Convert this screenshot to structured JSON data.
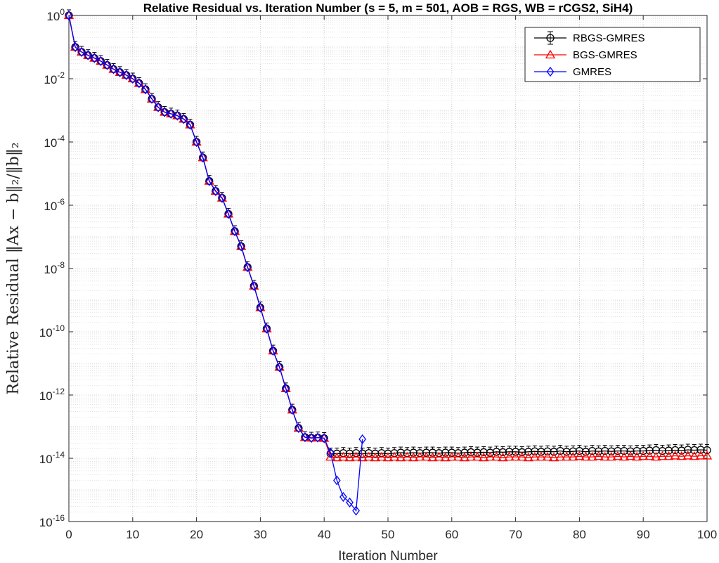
{
  "chart_data": {
    "type": "line",
    "title": "Relative Residual vs. Iteration Number (s = 5, m = 501, AOB = RGS, WB = rCGS2, SiH4)",
    "xlabel": "Iteration Number",
    "ylabel": "Relative Residual ‖Ax − b‖₂/‖b‖₂",
    "xlim": [
      0,
      100
    ],
    "ylim_exponent": [
      -16,
      0
    ],
    "yscale": "log",
    "grid": true,
    "minor_grid": true,
    "legend_position": "top-right",
    "x_ticks": [
      "0",
      "10",
      "20",
      "30",
      "40",
      "50",
      "60",
      "70",
      "80",
      "90",
      "100"
    ],
    "y_ticks": [
      {
        "base": "10",
        "exp": "0"
      },
      {
        "base": "10",
        "exp": "-2"
      },
      {
        "base": "10",
        "exp": "-4"
      },
      {
        "base": "10",
        "exp": "-6"
      },
      {
        "base": "10",
        "exp": "-8"
      },
      {
        "base": "10",
        "exp": "-10"
      },
      {
        "base": "10",
        "exp": "-12"
      },
      {
        "base": "10",
        "exp": "-14"
      },
      {
        "base": "10",
        "exp": "-16"
      }
    ],
    "series": [
      {
        "name": "RBGS-GMRES",
        "color": "#000000",
        "marker": "circle",
        "x": [
          0,
          1,
          2,
          3,
          4,
          5,
          6,
          7,
          8,
          9,
          10,
          11,
          12,
          13,
          14,
          15,
          16,
          17,
          18,
          19,
          20,
          21,
          22,
          23,
          24,
          25,
          26,
          27,
          28,
          29,
          30,
          31,
          32,
          33,
          34,
          35,
          36,
          37,
          38,
          39,
          40,
          41,
          42,
          43,
          44,
          45,
          46,
          47,
          48,
          49,
          50,
          51,
          52,
          53,
          54,
          55,
          56,
          57,
          58,
          59,
          60,
          61,
          62,
          63,
          64,
          65,
          66,
          67,
          68,
          69,
          70,
          71,
          72,
          73,
          74,
          75,
          76,
          77,
          78,
          79,
          80,
          81,
          82,
          83,
          84,
          85,
          86,
          87,
          88,
          89,
          90,
          91,
          92,
          93,
          94,
          95,
          96,
          97,
          98,
          99,
          100
        ],
        "y": [
          1,
          0.1,
          0.07,
          0.055,
          0.045,
          0.036,
          0.027,
          0.02,
          0.016,
          0.013,
          0.01,
          0.0072,
          0.0046,
          0.0023,
          0.00125,
          0.00088,
          0.00078,
          0.00068,
          0.00053,
          0.00035,
          0.0001,
          3.2e-05,
          5.8e-06,
          2.8e-06,
          1.7e-06,
          5.3e-07,
          1.5e-07,
          5e-08,
          1.1e-08,
          2.8e-09,
          5.8e-10,
          1.25e-10,
          2.5e-11,
          7.6e-12,
          1.6e-12,
          3.4e-13,
          9e-14,
          4.6e-14,
          4.4e-14,
          4.5e-14,
          4.3e-14,
          1.4e-14,
          1.4e-14,
          1.45e-14,
          1.4e-14,
          1.45e-14,
          1.4e-14,
          1.45e-14,
          1.4e-14,
          1.45e-14,
          1.4e-14,
          1.45e-14,
          1.5e-14,
          1.45e-14,
          1.5e-14,
          1.45e-14,
          1.5e-14,
          1.5e-14,
          1.45e-14,
          1.5e-14,
          1.5e-14,
          1.45e-14,
          1.5e-14,
          1.55e-14,
          1.5e-14,
          1.55e-14,
          1.5e-14,
          1.6e-14,
          1.55e-14,
          1.6e-14,
          1.6e-14,
          1.55e-14,
          1.6e-14,
          1.65e-14,
          1.6e-14,
          1.65e-14,
          1.6e-14,
          1.7e-14,
          1.6e-14,
          1.65e-14,
          1.7e-14,
          1.6e-14,
          1.7e-14,
          1.65e-14,
          1.7e-14,
          1.65e-14,
          1.7e-14,
          1.7e-14,
          1.65e-14,
          1.7e-14,
          1.7e-14,
          1.75e-14,
          1.8e-14,
          1.7e-14,
          1.75e-14,
          1.8e-14,
          1.75e-14,
          1.85e-14,
          1.8e-14,
          1.85e-14,
          1.8e-14
        ]
      },
      {
        "name": "BGS-GMRES",
        "color": "#ff0000",
        "marker": "triangle",
        "x": [
          0,
          1,
          2,
          3,
          4,
          5,
          6,
          7,
          8,
          9,
          10,
          11,
          12,
          13,
          14,
          15,
          16,
          17,
          18,
          19,
          20,
          21,
          22,
          23,
          24,
          25,
          26,
          27,
          28,
          29,
          30,
          31,
          32,
          33,
          34,
          35,
          36,
          37,
          38,
          39,
          40,
          41,
          42,
          43,
          44,
          45,
          46,
          47,
          48,
          49,
          50,
          51,
          52,
          53,
          54,
          55,
          56,
          57,
          58,
          59,
          60,
          61,
          62,
          63,
          64,
          65,
          66,
          67,
          68,
          69,
          70,
          71,
          72,
          73,
          74,
          75,
          76,
          77,
          78,
          79,
          80,
          81,
          82,
          83,
          84,
          85,
          86,
          87,
          88,
          89,
          90,
          91,
          92,
          93,
          94,
          95,
          96,
          97,
          98,
          99,
          100
        ],
        "y": [
          1,
          0.1,
          0.07,
          0.055,
          0.045,
          0.036,
          0.027,
          0.02,
          0.016,
          0.013,
          0.01,
          0.0072,
          0.0046,
          0.0023,
          0.00125,
          0.00088,
          0.00078,
          0.00068,
          0.00053,
          0.00035,
          0.0001,
          3.2e-05,
          5.8e-06,
          2.8e-06,
          1.7e-06,
          5.3e-07,
          1.5e-07,
          5e-08,
          1.1e-08,
          2.8e-09,
          5.8e-10,
          1.25e-10,
          2.5e-11,
          7.6e-12,
          1.6e-12,
          3.4e-13,
          9e-14,
          4.6e-14,
          4.4e-14,
          4.5e-14,
          4.3e-14,
          1.1e-14,
          1.05e-14,
          1.1e-14,
          1.05e-14,
          1.1e-14,
          1.05e-14,
          1.1e-14,
          1.05e-14,
          1.1e-14,
          1.05e-14,
          1.1e-14,
          1.05e-14,
          1.1e-14,
          1.05e-14,
          1.1e-14,
          1.1e-14,
          1.05e-14,
          1.1e-14,
          1.05e-14,
          1.1e-14,
          1.1e-14,
          1.05e-14,
          1.1e-14,
          1.1e-14,
          1.05e-14,
          1.1e-14,
          1.1e-14,
          1.05e-14,
          1.1e-14,
          1.1e-14,
          1.1e-14,
          1.05e-14,
          1.1e-14,
          1.1e-14,
          1.1e-14,
          1.05e-14,
          1.1e-14,
          1.1e-14,
          1.1e-14,
          1.15e-14,
          1.1e-14,
          1.1e-14,
          1.15e-14,
          1.1e-14,
          1.1e-14,
          1.15e-14,
          1.1e-14,
          1.15e-14,
          1.1e-14,
          1.15e-14,
          1.15e-14,
          1.1e-14,
          1.15e-14,
          1.15e-14,
          1.2e-14,
          1.15e-14,
          1.2e-14,
          1.15e-14,
          1.2e-14,
          1.2e-14
        ]
      },
      {
        "name": "GMRES",
        "color": "#0000ff",
        "marker": "diamond",
        "x": [
          0,
          1,
          2,
          3,
          4,
          5,
          6,
          7,
          8,
          9,
          10,
          11,
          12,
          13,
          14,
          15,
          16,
          17,
          18,
          19,
          20,
          21,
          22,
          23,
          24,
          25,
          26,
          27,
          28,
          29,
          30,
          31,
          32,
          33,
          34,
          35,
          36,
          37,
          38,
          39,
          40,
          41,
          42,
          43,
          44,
          45,
          46
        ],
        "y": [
          1,
          0.1,
          0.07,
          0.055,
          0.045,
          0.036,
          0.027,
          0.02,
          0.016,
          0.013,
          0.01,
          0.0072,
          0.0046,
          0.0023,
          0.00125,
          0.00088,
          0.00078,
          0.00068,
          0.00053,
          0.00035,
          0.0001,
          3.2e-05,
          5.8e-06,
          2.8e-06,
          1.7e-06,
          5.3e-07,
          1.5e-07,
          5e-08,
          1.1e-08,
          2.8e-09,
          5.8e-10,
          1.25e-10,
          2.5e-11,
          7.6e-12,
          1.6e-12,
          3.4e-13,
          9e-14,
          4.6e-14,
          4.4e-14,
          4.5e-14,
          4.3e-14,
          1.5e-14,
          2e-15,
          6e-16,
          4e-16,
          2.2e-16,
          4e-14
        ]
      }
    ]
  }
}
